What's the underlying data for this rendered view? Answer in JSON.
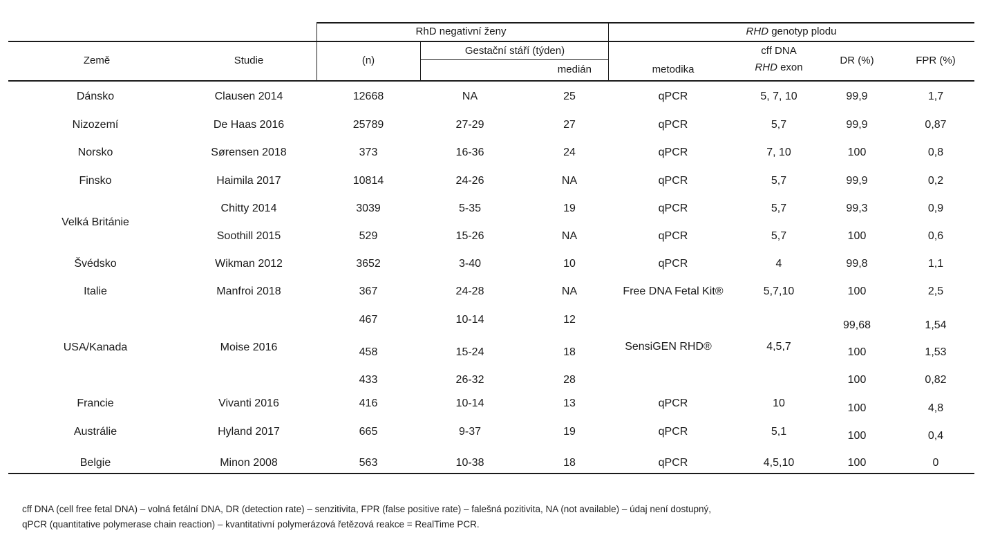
{
  "header": {
    "group_rhd_women": "RhD negativní ženy",
    "group_genotype_italic": "RHD",
    "group_genotype_rest": " genotyp plodu",
    "col_country": "Země",
    "col_study": "Studie",
    "col_n": "(n)",
    "col_gest": "Gestační stáří (týden)",
    "col_median": "medián",
    "col_method": "metodika",
    "col_exon_line1": "cff DNA",
    "col_exon_line2_italic": "RHD",
    "col_exon_line2_rest": " exon",
    "col_dr": "DR (%)",
    "col_fpr": "FPR (%)"
  },
  "rows": [
    {
      "country": "Dánsko",
      "study": "Clausen 2014",
      "n": "12668",
      "gest": "NA",
      "median": "25",
      "method": "qPCR",
      "exon": "5, 7, 10",
      "dr": "99,9",
      "fpr": "1,7"
    },
    {
      "country": "Nizozemí",
      "study": "De Haas 2016",
      "n": "25789",
      "gest": "27-29",
      "median": "27",
      "method": "qPCR",
      "exon": "5,7",
      "dr": "99,9",
      "fpr": "0,87"
    },
    {
      "country": "Norsko",
      "study": "Sørensen 2018",
      "n": "373",
      "gest": "16-36",
      "median": "24",
      "method": "qPCR",
      "exon": "7, 10",
      "dr": "100",
      "fpr": "0,8"
    },
    {
      "country": "Finsko",
      "study": "Haimila 2017",
      "n": "10814",
      "gest": "24-26",
      "median": "NA",
      "method": "qPCR",
      "exon": "5,7",
      "dr": "99,9",
      "fpr": "0,2"
    },
    {
      "country": "",
      "study": "Chitty 2014",
      "n": "3039",
      "gest": "5-35",
      "median": "19",
      "method": "qPCR",
      "exon": "5,7",
      "dr": "99,3",
      "fpr": "0,9"
    },
    {
      "country": "",
      "study": "Soothill 2015",
      "n": "529",
      "gest": "15-26",
      "median": "NA",
      "method": "qPCR",
      "exon": "5,7",
      "dr": "100",
      "fpr": "0,6"
    },
    {
      "country": "Švédsko",
      "study": "Wikman 2012",
      "n": "3652",
      "gest": "3-40",
      "median": "10",
      "method": "qPCR",
      "exon": "4",
      "dr": "99,8",
      "fpr": "1,1"
    },
    {
      "country": "Italie",
      "study": "Manfroi 2018",
      "n": "367",
      "gest": "24-28",
      "median": "NA",
      "method": "Free DNA Fetal Kit®",
      "exon": "5,7,10",
      "dr": "100",
      "fpr": "2,5"
    },
    {
      "country": "",
      "study": "",
      "n": "467",
      "gest": "10-14",
      "median": "12",
      "method": "",
      "exon": "",
      "dr": "99,68",
      "fpr": "1,54"
    },
    {
      "country": "",
      "study": "",
      "n": "458",
      "gest": "15-24",
      "median": "18",
      "method": "",
      "exon": "",
      "dr": "100",
      "fpr": "1,53"
    },
    {
      "country": "",
      "study": "",
      "n": "433",
      "gest": "26-32",
      "median": "28",
      "method": "",
      "exon": "",
      "dr": "100",
      "fpr": "0,82"
    },
    {
      "country": "Francie",
      "study": "Vivanti 2016",
      "n": "416",
      "gest": "10-14",
      "median": "13",
      "method": "qPCR",
      "exon": "10",
      "dr": "100",
      "fpr": "4,8"
    },
    {
      "country": "Austrálie",
      "study": "Hyland 2017",
      "n": "665",
      "gest": "9-37",
      "median": "19",
      "method": "qPCR",
      "exon": "5,1",
      "dr": "100",
      "fpr": "0,4"
    },
    {
      "country": "Belgie",
      "study": "Minon 2008",
      "n": "563",
      "gest": "10-38",
      "median": "18",
      "method": "qPCR",
      "exon": "4,5,10",
      "dr": "100",
      "fpr": "0"
    }
  ],
  "merged": {
    "uk_country": "Velká Británie",
    "usa_country": "USA/Kanada",
    "usa_study": "Moise 2016",
    "usa_method": "SensiGEN RHD®",
    "usa_exon": "4,5,7"
  },
  "footnote": {
    "line1": "cff DNA (cell free fetal DNA) – volná fetální DNA, DR (detection rate) – senzitivita, FPR (false positive rate) – falešná pozitivita, NA (not available) – údaj není dostupný,",
    "line2": "qPCR (quantitative polymerase chain reaction) – kvantitativní polymerázová řetězová reakce = RealTime PCR."
  }
}
